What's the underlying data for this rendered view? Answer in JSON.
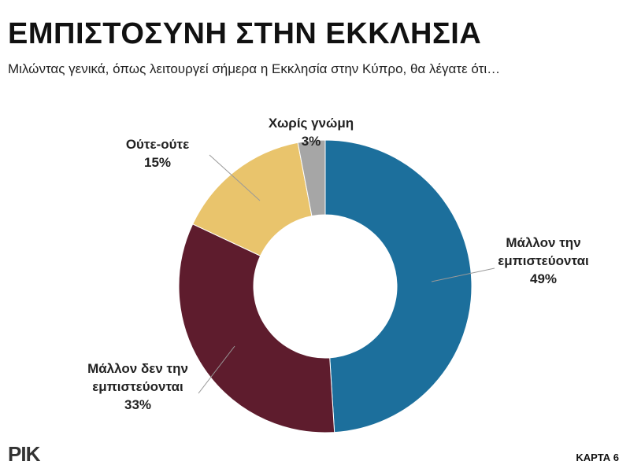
{
  "chart_data": {
    "type": "donut",
    "title": "ΕΜΠΙΣΤΟΣΥΝΗ ΣΤΗΝ ΕΚΚΛΗΣΙΑ",
    "subtitle": "Μιλώντας γενικά, όπως λειτουργεί σήμερα η Εκκλησία στην Κύπρο, θα λέγατε ότι…",
    "categories": [
      "Μάλλον την εμπιστεύονται",
      "Μάλλον δεν την εμπιστεύονται",
      "Ούτε-ούτε",
      "Χωρίς γνώμη"
    ],
    "values": [
      49,
      33,
      15,
      3
    ],
    "value_labels": [
      "49%",
      "33%",
      "15%",
      "3%"
    ],
    "colors": [
      "#1c6f9c",
      "#5e1c2d",
      "#e9c46c",
      "#a6a6a6"
    ]
  },
  "footer": {
    "logo": "ΡΙΚ",
    "card": "ΚΑΡΤΑ 6"
  }
}
